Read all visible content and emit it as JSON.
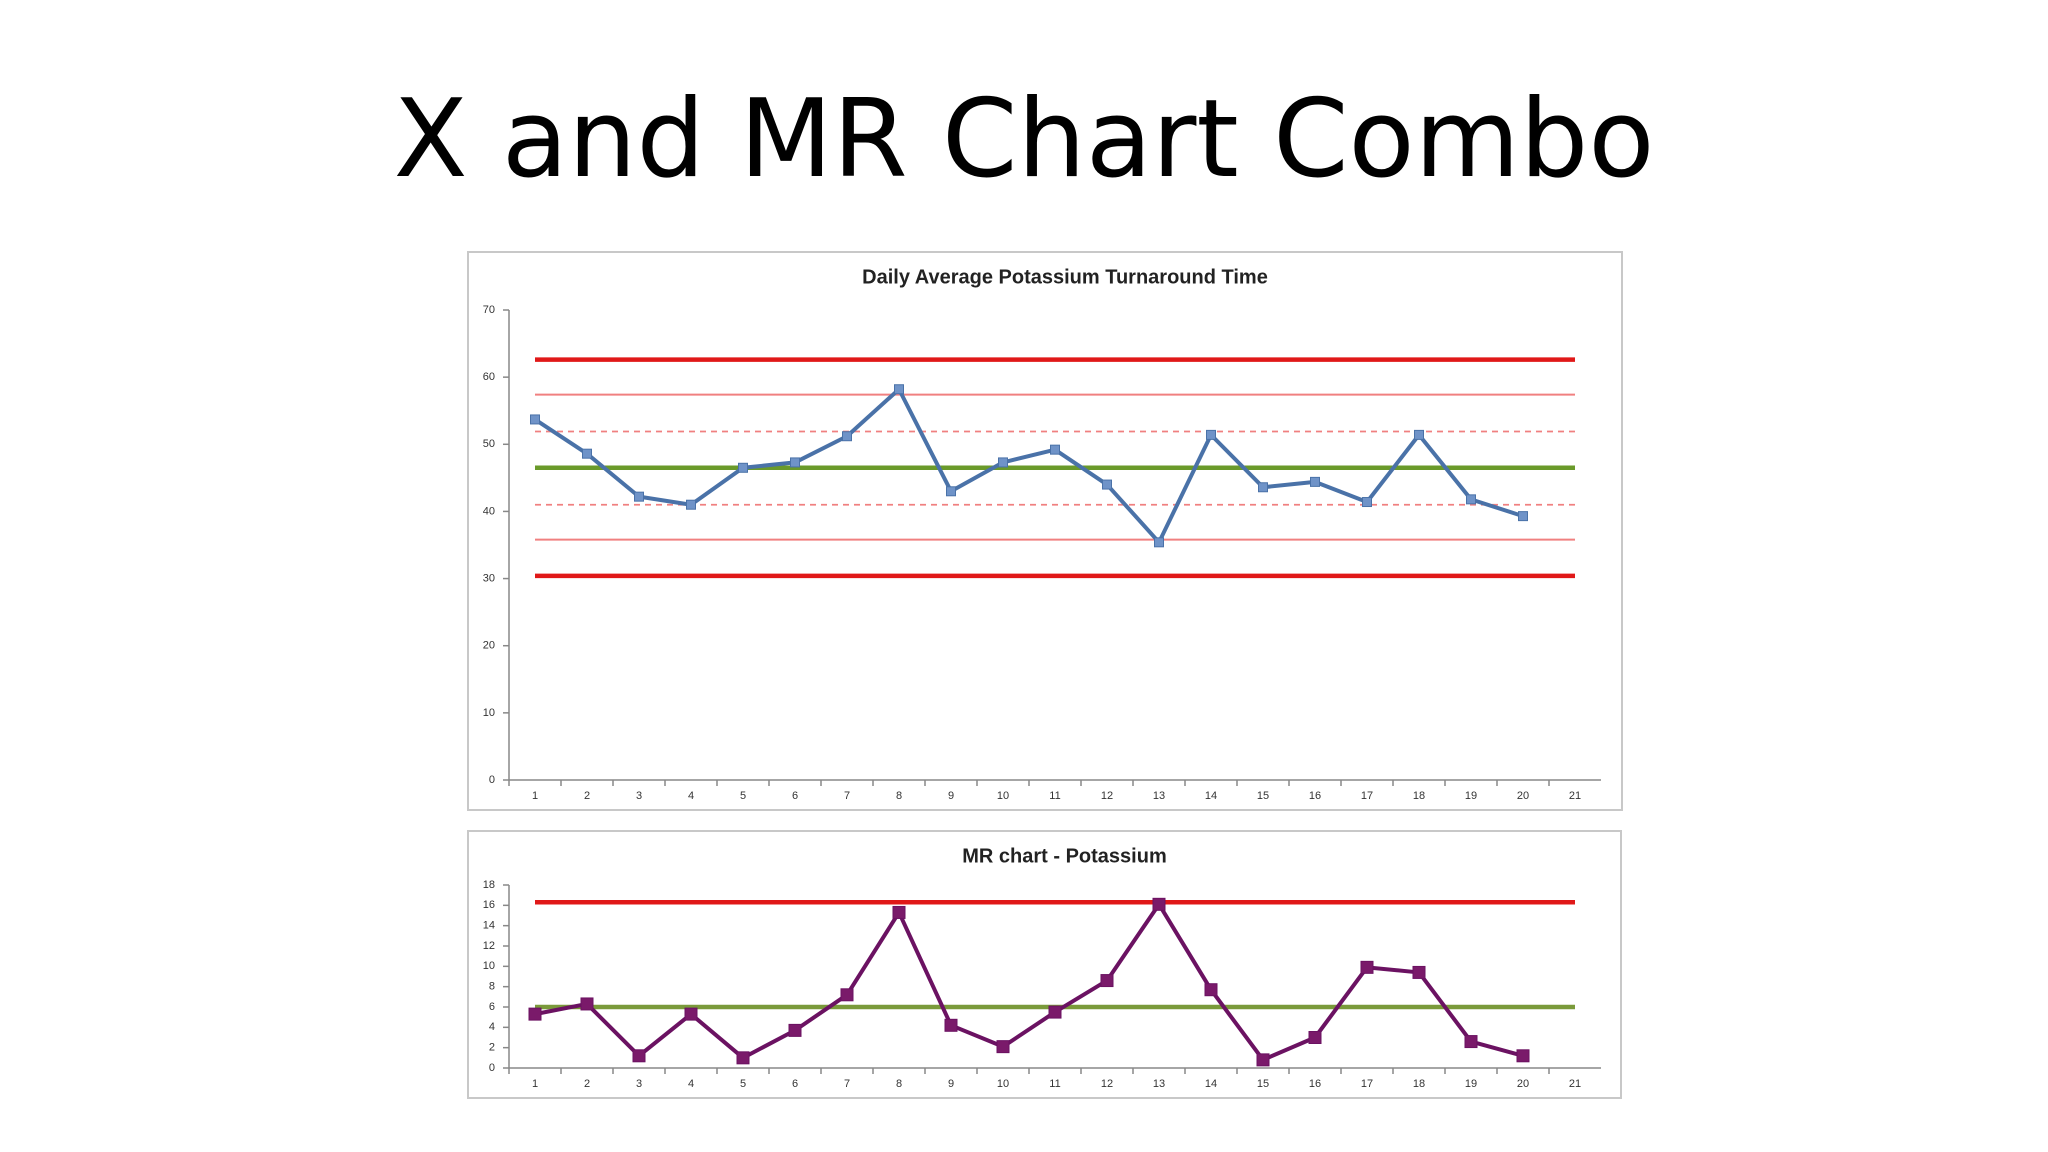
{
  "title": "X and MR Chart Combo",
  "chart_data": [
    {
      "type": "line",
      "title": "Daily Average Potassium Turnaround Time",
      "categories": [
        "1",
        "2",
        "3",
        "4",
        "5",
        "6",
        "7",
        "8",
        "9",
        "10",
        "11",
        "12",
        "13",
        "14",
        "15",
        "16",
        "17",
        "18",
        "19",
        "20",
        "21"
      ],
      "series": [
        {
          "color": "#4a72a8",
          "marker_color": "#6f93c8",
          "values": [
            53.7,
            48.6,
            42.2,
            41.0,
            46.5,
            47.3,
            51.2,
            58.2,
            43.0,
            47.3,
            49.2,
            44.0,
            35.4,
            51.4,
            43.6,
            44.4,
            41.4,
            51.4,
            41.8,
            39.3,
            null
          ]
        }
      ],
      "reference_lines": [
        {
          "value": 62.6,
          "color": "#e01818",
          "style": "heavy"
        },
        {
          "value": 57.4,
          "color": "#f08080",
          "style": "solid"
        },
        {
          "value": 51.9,
          "color": "#f08080",
          "style": "dashed"
        },
        {
          "value": 46.5,
          "color": "#6a9a2a",
          "style": "heavy"
        },
        {
          "value": 41.0,
          "color": "#f08080",
          "style": "dashed"
        },
        {
          "value": 35.8,
          "color": "#f08080",
          "style": "solid"
        },
        {
          "value": 30.4,
          "color": "#e01818",
          "style": "heavy"
        }
      ],
      "ylim": [
        0,
        70
      ],
      "yticks": [
        0,
        10,
        20,
        30,
        40,
        50,
        60,
        70
      ]
    },
    {
      "type": "line",
      "title": "MR chart - Potassium",
      "categories": [
        "1",
        "2",
        "3",
        "4",
        "5",
        "6",
        "7",
        "8",
        "9",
        "10",
        "11",
        "12",
        "13",
        "14",
        "15",
        "16",
        "17",
        "18",
        "19",
        "20",
        "21"
      ],
      "series": [
        {
          "color": "#6b1262",
          "marker_color": "#7a1a6a",
          "values": [
            5.3,
            6.3,
            1.2,
            5.3,
            1.0,
            3.7,
            7.2,
            15.3,
            4.2,
            2.1,
            5.5,
            8.6,
            16.1,
            7.7,
            0.8,
            3.0,
            9.9,
            9.4,
            2.6,
            1.2,
            null
          ]
        }
      ],
      "reference_lines": [
        {
          "value": 16.3,
          "color": "#e01818",
          "style": "heavy"
        },
        {
          "value": 6.0,
          "color": "#7a9a3a",
          "style": "heavy"
        }
      ],
      "ylim": [
        0,
        18
      ],
      "yticks": [
        0,
        2,
        4,
        6,
        8,
        10,
        12,
        14,
        16,
        18
      ]
    }
  ]
}
